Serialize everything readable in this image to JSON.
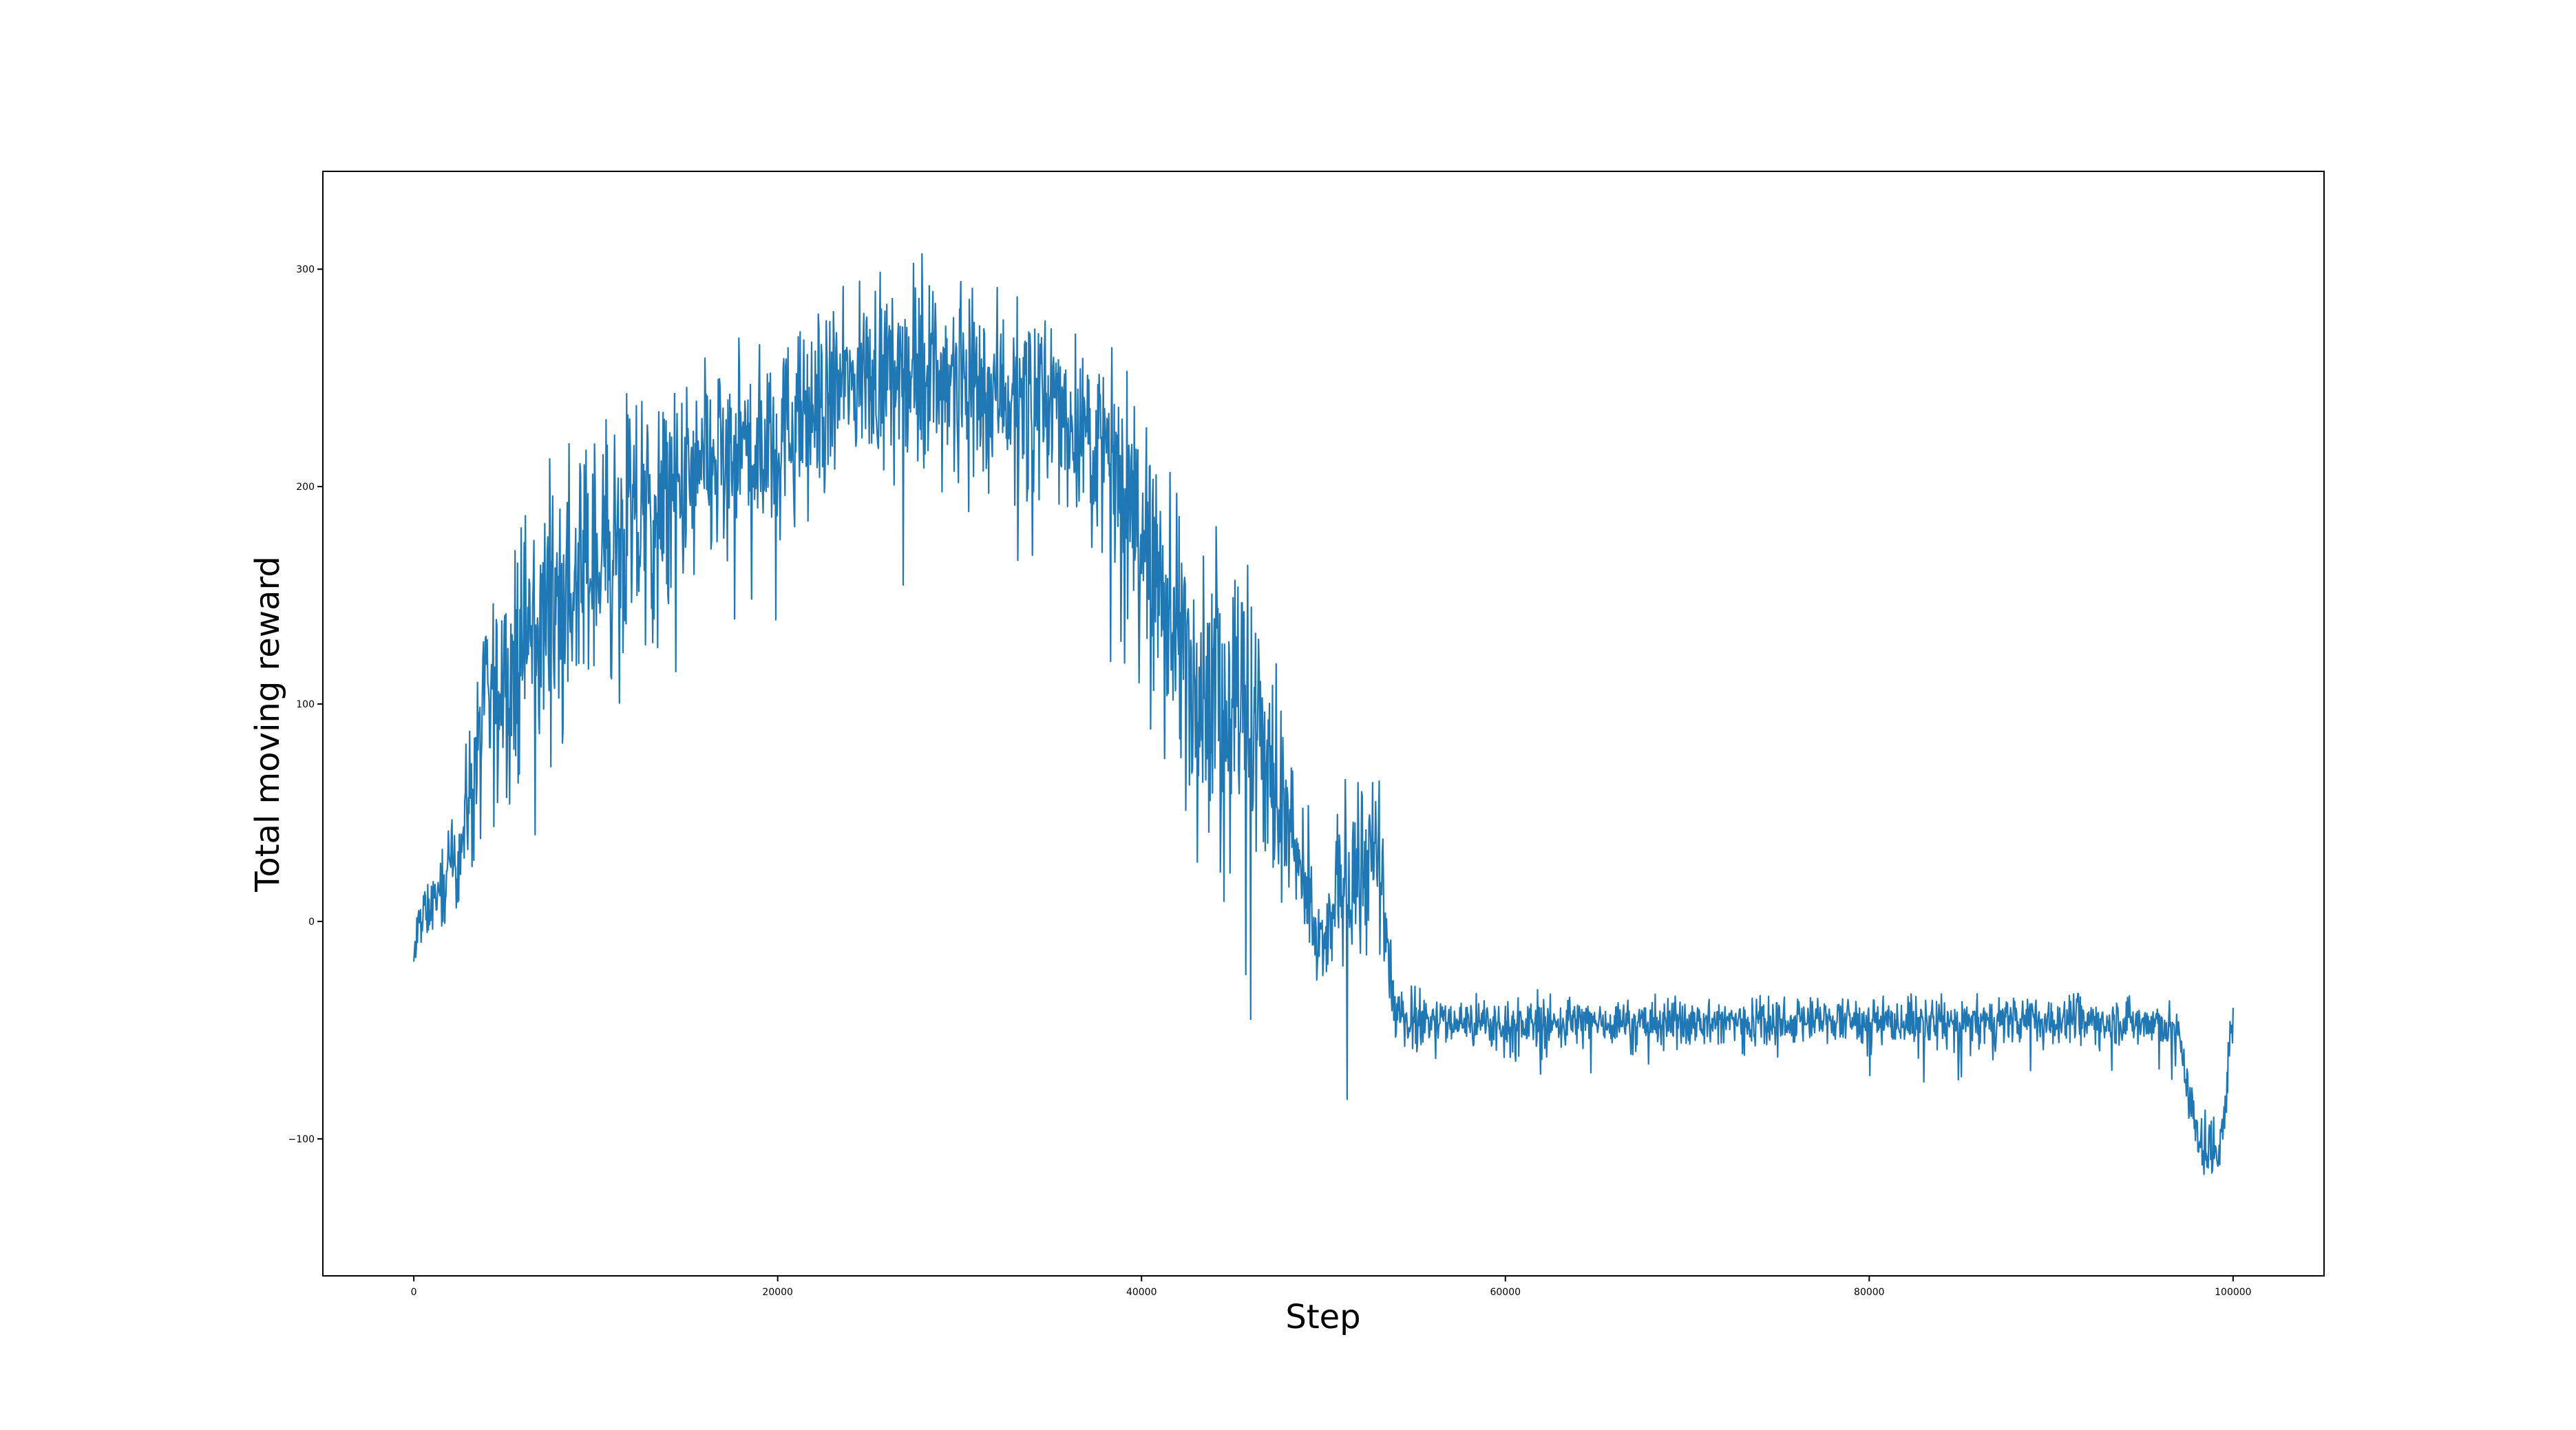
{
  "chart_data": {
    "type": "line",
    "title": "",
    "xlabel": "Step",
    "ylabel": "Total moving reward",
    "xlim": [
      -5000,
      105000
    ],
    "ylim": [
      -163,
      345
    ],
    "x_ticks": [
      0,
      20000,
      40000,
      60000,
      80000,
      100000
    ],
    "x_tick_labels": [
      "0",
      "20000",
      "40000",
      "60000",
      "80000",
      "100000"
    ],
    "y_ticks": [
      -100,
      0,
      100,
      200,
      300
    ],
    "y_tick_labels": [
      "−100",
      "0",
      "100",
      "200",
      "300"
    ],
    "grid": false,
    "legend": "none",
    "line_color": "#1f77b4",
    "series": [
      {
        "x": [
          0,
          200,
          500,
          1000,
          1500,
          2000,
          2500,
          3000,
          3500,
          4000,
          4500,
          5000,
          6000,
          7000,
          8000,
          9000,
          10000,
          11000,
          12000,
          13000,
          14000,
          15000,
          16000,
          17000,
          18000,
          19000,
          20000,
          21000,
          22000,
          23000,
          24000,
          25000,
          26000,
          27000,
          28000,
          29000,
          30000,
          31000,
          32000,
          33000,
          34000,
          35000,
          36000,
          37000,
          38000,
          39000,
          40000,
          41000,
          42000,
          43000,
          44000,
          45000,
          46000,
          47000,
          48000,
          49000,
          50000,
          51000,
          52000,
          53000,
          54000,
          56000,
          60000,
          65000,
          70000,
          75000,
          80000,
          85000,
          90000,
          95000,
          97000,
          98000,
          99000,
          99500,
          100000
        ],
        "y": [
          -20,
          -5,
          2,
          8,
          15,
          22,
          35,
          55,
          75,
          95,
          105,
          110,
          125,
          140,
          148,
          155,
          165,
          172,
          180,
          185,
          190,
          198,
          205,
          212,
          215,
          218,
          222,
          228,
          235,
          242,
          248,
          252,
          255,
          256,
          255,
          253,
          250,
          248,
          246,
          244,
          242,
          238,
          232,
          225,
          215,
          200,
          180,
          150,
          130,
          115,
          110,
          105,
          95,
          70,
          45,
          10,
          -15,
          20,
          30,
          25,
          -45,
          -45,
          -48,
          -46,
          -47,
          -45,
          -46,
          -47,
          -45,
          -46,
          -50,
          -100,
          -105,
          -90,
          -40
        ],
        "band": [
          25,
          20,
          20,
          20,
          25,
          30,
          40,
          55,
          65,
          70,
          75,
          80,
          85,
          85,
          85,
          85,
          85,
          85,
          85,
          80,
          78,
          75,
          75,
          72,
          70,
          68,
          65,
          62,
          60,
          58,
          55,
          55,
          55,
          56,
          58,
          60,
          62,
          62,
          62,
          60,
          58,
          58,
          60,
          62,
          65,
          70,
          80,
          90,
          95,
          100,
          100,
          105,
          110,
          90,
          55,
          40,
          30,
          55,
          70,
          60,
          20,
          17,
          17,
          16,
          16,
          17,
          16,
          16,
          17,
          16,
          18,
          22,
          25,
          30,
          20
        ]
      }
    ]
  }
}
